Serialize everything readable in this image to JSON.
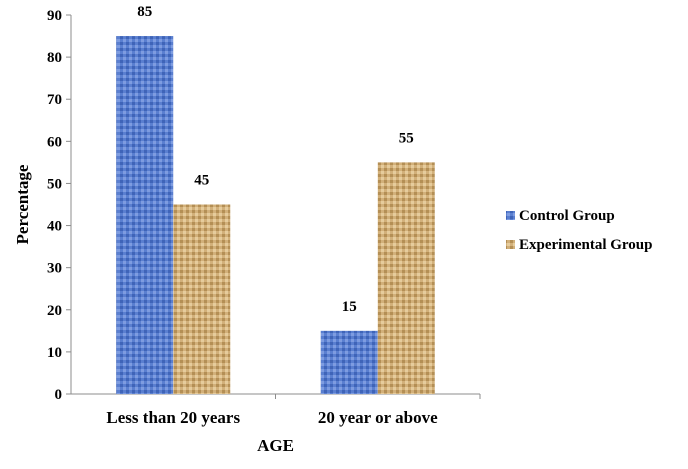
{
  "chart_data": {
    "type": "bar",
    "categories": [
      "Less than 20 years",
      "20 year or above"
    ],
    "series": [
      {
        "name": "Control Group",
        "values": [
          85,
          15
        ],
        "color": "#4f74c8"
      },
      {
        "name": "Experimental Group",
        "values": [
          45,
          55
        ],
        "color": "#c9a66e"
      }
    ],
    "yticks": [
      0,
      10,
      20,
      30,
      40,
      50,
      60,
      70,
      80,
      90
    ],
    "ylim": [
      0,
      90
    ],
    "xlabel": "AGE",
    "ylabel": "Percentage",
    "legend_position": "right",
    "grid": false
  }
}
